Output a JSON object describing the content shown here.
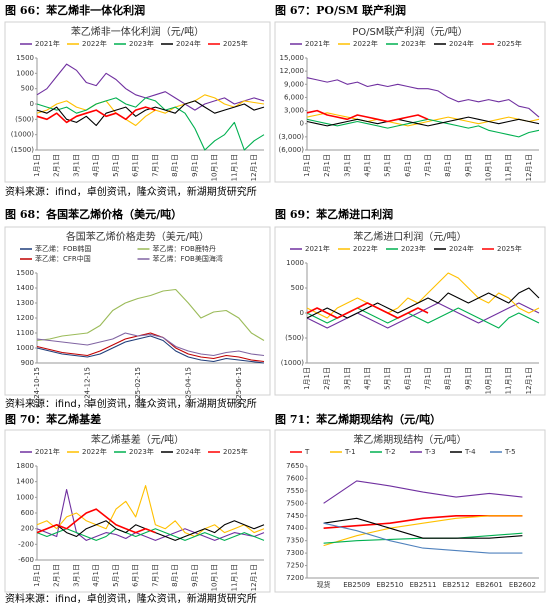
{
  "headings": [
    "图 66：苯乙烯非一体化利润",
    "图 67：PO/SM 联产利润",
    "图 68：各国苯乙烯价格（美元/吨）",
    "图 69：苯乙烯进口利润",
    "图 70：苯乙烯基差",
    "图 71：苯乙烯期现结构（元/吨）"
  ],
  "sources": [
    "资料来源：ifind，卓创资讯，隆众资讯，新湖期货研究所",
    "资料来源：ifind，卓创资讯，隆众资讯，新湖期货研究所",
    "资料来源：ifind，卓创资讯，隆众资讯，新湖期货研究所"
  ],
  "chart_data": [
    {
      "type": "line",
      "title": "苯乙烯非一体化利润（元/吨）",
      "categories": [
        "1月1日",
        null,
        "2月1日",
        null,
        "3月1日",
        null,
        "4月1日",
        null,
        "5月1日",
        null,
        "6月1日",
        null,
        "7月1日",
        null,
        "8月1日",
        null,
        "9月1日",
        null,
        "10月1日",
        null,
        "11月1日",
        null,
        "12月1日",
        null
      ],
      "ylim": [
        -1500,
        1500
      ],
      "yticks": [
        1500,
        1000,
        500,
        0,
        {
          "value": -500,
          "label": "(500)"
        },
        {
          "value": -1000,
          "label": "(1000)"
        },
        {
          "value": -1500,
          "label": "(1500)"
        }
      ],
      "series": [
        {
          "name": "2021年",
          "color": "#7030a0",
          "values": [
            300,
            500,
            900,
            1300,
            1100,
            700,
            600,
            1000,
            800,
            500,
            300,
            200,
            300,
            400,
            200,
            0,
            -200,
            0,
            100,
            200,
            0,
            100,
            200,
            100
          ]
        },
        {
          "name": "2022年",
          "color": "#ffc000",
          "values": [
            -300,
            -200,
            0,
            100,
            -100,
            -200,
            0,
            100,
            -300,
            -500,
            -700,
            -400,
            -200,
            -300,
            -100,
            0,
            100,
            300,
            200,
            0,
            -100,
            100,
            50,
            0
          ]
        },
        {
          "name": "2023年",
          "color": "#00b050",
          "values": [
            0,
            -100,
            -200,
            -100,
            -300,
            -200,
            0,
            100,
            200,
            0,
            -100,
            200,
            100,
            -200,
            -100,
            -300,
            -800,
            -1500,
            -1200,
            -1000,
            -600,
            -1500,
            -1200,
            -1000
          ]
        },
        {
          "name": "2024年",
          "color": "#000000",
          "values": [
            -200,
            -300,
            -100,
            -500,
            -600,
            -400,
            -700,
            -300,
            -200,
            -100,
            -400,
            -200,
            -100,
            -200,
            -300,
            0,
            100,
            -100,
            -300,
            -200,
            -100,
            0,
            -200,
            -100
          ]
        },
        {
          "name": "2025年",
          "color": "#ff0000",
          "values": [
            -400,
            -500,
            -300,
            -600,
            -400,
            -300,
            -200,
            -400,
            -300,
            -500,
            -200,
            -100,
            -200,
            null,
            null,
            null,
            null,
            null,
            null,
            null,
            null,
            null,
            null,
            null
          ]
        }
      ]
    },
    {
      "type": "line",
      "title": "PO/SM联产利润（元/吨）",
      "categories": [
        "1月1日",
        null,
        "2月1日",
        null,
        "3月1日",
        null,
        "4月1日",
        null,
        "5月1日",
        null,
        "6月1日",
        null,
        "7月1日",
        null,
        "8月1日",
        null,
        "9月1日",
        null,
        "10月1日",
        null,
        "11月1日",
        null,
        "12月1日",
        null
      ],
      "ylim": [
        -6000,
        15000
      ],
      "yticks": [
        {
          "value": 15000,
          "label": "15,000"
        },
        {
          "value": 12000,
          "label": "12,000"
        },
        {
          "value": 9000,
          "label": "9,000"
        },
        {
          "value": 6000,
          "label": "6,000"
        },
        {
          "value": 3000,
          "label": "3,000"
        },
        0,
        {
          "value": -3000,
          "label": "(3,000)"
        },
        {
          "value": -6000,
          "label": "(6,000)"
        }
      ],
      "series": [
        {
          "name": "2021年",
          "color": "#7030a0",
          "values": [
            10500,
            10000,
            9500,
            10000,
            9000,
            9500,
            8500,
            9000,
            8500,
            9000,
            8500,
            8000,
            8000,
            7500,
            6000,
            5000,
            5500,
            5000,
            5500,
            5000,
            5500,
            4000,
            3500,
            1500
          ]
        },
        {
          "name": "2022年",
          "color": "#ffc000",
          "values": [
            1500,
            2000,
            2500,
            2000,
            1500,
            1000,
            500,
            1000,
            500,
            0,
            -500,
            0,
            500,
            1000,
            1500,
            1000,
            500,
            0,
            500,
            1000,
            1500,
            1000,
            500,
            1000
          ]
        },
        {
          "name": "2023年",
          "color": "#00b050",
          "values": [
            1000,
            500,
            0,
            -500,
            0,
            500,
            0,
            -500,
            -1000,
            -500,
            0,
            500,
            1000,
            500,
            0,
            -500,
            -1000,
            -500,
            -1500,
            -2000,
            -2500,
            -3000,
            -2000,
            -1500
          ]
        },
        {
          "name": "2024年",
          "color": "#000000",
          "values": [
            500,
            0,
            -500,
            0,
            500,
            1000,
            500,
            0,
            500,
            1000,
            500,
            0,
            -500,
            0,
            500,
            1000,
            1500,
            1000,
            500,
            0,
            500,
            1000,
            500,
            0
          ]
        },
        {
          "name": "2025年",
          "color": "#ff0000",
          "values": [
            2500,
            3000,
            2000,
            1500,
            1000,
            2000,
            1500,
            1000,
            500,
            1000,
            1500,
            2000,
            1000,
            null,
            null,
            null,
            null,
            null,
            null,
            null,
            null,
            null,
            null,
            null
          ]
        }
      ]
    },
    {
      "type": "line",
      "title": "各国苯乙烯价格走势（美元/吨）",
      "categories": [
        "2024-10-15",
        null,
        null,
        null,
        "2024-12-15",
        null,
        null,
        null,
        "2025-02-15",
        null,
        null,
        null,
        "2025-04-15",
        null,
        null,
        null,
        "2025-06-15",
        null,
        null
      ],
      "ylim": [
        900,
        1500
      ],
      "yticks": [
        1500,
        1400,
        1300,
        1200,
        1100,
        1000,
        900
      ],
      "series": [
        {
          "name": "苯乙烯：FOB韩国",
          "color": "#1f3d7a",
          "values": [
            1000,
            980,
            960,
            950,
            940,
            960,
            1000,
            1040,
            1060,
            1080,
            1050,
            980,
            940,
            920,
            910,
            930,
            920,
            910,
            900
          ]
        },
        {
          "name": "苯乙烯：FOB鹿特丹",
          "color": "#9bbb59",
          "values": [
            1050,
            1060,
            1080,
            1090,
            1100,
            1150,
            1250,
            1300,
            1330,
            1350,
            1380,
            1390,
            1300,
            1200,
            1240,
            1250,
            1200,
            1100,
            1050
          ]
        },
        {
          "name": "苯乙烯：CFR中国",
          "color": "#c00000",
          "values": [
            1010,
            990,
            970,
            960,
            950,
            980,
            1020,
            1060,
            1080,
            1100,
            1070,
            1000,
            960,
            940,
            930,
            950,
            940,
            920,
            910
          ]
        },
        {
          "name": "苯乙烯：FOB美国海湾",
          "color": "#8064a2",
          "values": [
            1060,
            1050,
            1040,
            1030,
            1020,
            1040,
            1060,
            1100,
            1080,
            1090,
            1070,
            1010,
            980,
            960,
            950,
            970,
            980,
            960,
            950
          ]
        }
      ]
    },
    {
      "type": "line",
      "title": "苯乙烯进口利润（元/吨）",
      "categories": [
        "1月1日",
        null,
        "2月1日",
        null,
        "3月1日",
        null,
        "4月1日",
        null,
        "5月1日",
        null,
        "6月1日",
        null,
        "7月1日",
        null,
        "8月1日",
        null,
        "9月1日",
        null,
        "10月1日",
        null,
        "11月1日",
        null,
        "12月1日",
        null
      ],
      "ylim": [
        -1000,
        1000
      ],
      "yticks": [
        1000,
        500,
        0,
        {
          "value": -500,
          "label": "(500)"
        },
        {
          "value": -1000,
          "label": "(1000)"
        }
      ],
      "series": [
        {
          "name": "2021年",
          "color": "#7030a0",
          "values": [
            -100,
            -200,
            -300,
            -200,
            -100,
            0,
            -100,
            -200,
            -300,
            -200,
            -100,
            0,
            100,
            200,
            100,
            0,
            -100,
            -200,
            -100,
            0,
            100,
            200,
            100,
            0
          ]
        },
        {
          "name": "2022年",
          "color": "#ffc000",
          "values": [
            100,
            0,
            -100,
            100,
            200,
            300,
            200,
            100,
            0,
            100,
            300,
            200,
            400,
            600,
            800,
            700,
            500,
            300,
            200,
            400,
            300,
            100,
            0,
            100
          ]
        },
        {
          "name": "2023年",
          "color": "#00b050",
          "values": [
            0,
            -100,
            -200,
            -100,
            0,
            100,
            0,
            -100,
            -200,
            -100,
            0,
            -100,
            -200,
            -100,
            0,
            100,
            0,
            -100,
            -200,
            -300,
            -100,
            0,
            -100,
            -200
          ]
        },
        {
          "name": "2024年",
          "color": "#000000",
          "values": [
            -100,
            0,
            100,
            0,
            -100,
            0,
            100,
            200,
            100,
            0,
            100,
            200,
            300,
            200,
            400,
            300,
            200,
            300,
            400,
            300,
            200,
            400,
            500,
            300
          ]
        },
        {
          "name": "2025年",
          "color": "#ff0000",
          "values": [
            0,
            100,
            0,
            -100,
            0,
            100,
            200,
            100,
            0,
            -100,
            0,
            100,
            0,
            null,
            null,
            null,
            null,
            null,
            null,
            null,
            null,
            null,
            null,
            null
          ]
        }
      ]
    },
    {
      "type": "line",
      "title": "苯乙烯基差（元/吨）",
      "categories": [
        "1月1日",
        null,
        "2月1日",
        null,
        "3月1日",
        null,
        "4月1日",
        null,
        "5月1日",
        null,
        "6月1日",
        null,
        "7月1日",
        null,
        "8月1日",
        null,
        "9月1日",
        null,
        "10月1日",
        null,
        "11月1日",
        null,
        "12月1日",
        null
      ],
      "ylim": [
        -600,
        1800
      ],
      "yticks": [
        1800,
        1400,
        1000,
        600,
        200,
        -200,
        -600
      ],
      "series": [
        {
          "name": "2021年",
          "color": "#7030a0",
          "values": [
            200,
            100,
            0,
            1200,
            100,
            -100,
            0,
            100,
            50,
            -50,
            100,
            0,
            -100,
            0,
            100,
            200,
            100,
            0,
            -100,
            0,
            100,
            50,
            0,
            100
          ]
        },
        {
          "name": "2022年",
          "color": "#ffc000",
          "values": [
            300,
            400,
            200,
            500,
            600,
            400,
            300,
            200,
            700,
            900,
            500,
            1300,
            300,
            200,
            400,
            100,
            0,
            200,
            300,
            100,
            200,
            300,
            100,
            200
          ]
        },
        {
          "name": "2023年",
          "color": "#00b050",
          "values": [
            100,
            0,
            100,
            200,
            100,
            0,
            -100,
            0,
            200,
            100,
            0,
            100,
            200,
            100,
            0,
            -100,
            0,
            100,
            0,
            -100,
            0,
            100,
            0,
            -100
          ]
        },
        {
          "name": "2024年",
          "color": "#000000",
          "values": [
            100,
            200,
            300,
            100,
            0,
            200,
            300,
            400,
            200,
            100,
            300,
            200,
            100,
            0,
            -100,
            0,
            100,
            200,
            100,
            300,
            400,
            300,
            200,
            300
          ]
        },
        {
          "name": "2025年",
          "color": "#ff0000",
          "values": [
            100,
            200,
            300,
            200,
            400,
            600,
            700,
            500,
            300,
            200,
            100,
            200,
            100,
            null,
            null,
            null,
            null,
            null,
            null,
            null,
            null,
            null,
            null,
            null
          ]
        }
      ]
    },
    {
      "type": "line",
      "title": "苯乙烯期现结构（元/吨）",
      "categories": [
        "现货",
        "EB2509",
        "EB2510",
        "EB2511",
        "EB2512",
        "EB2601",
        "EB2602"
      ],
      "ylim": [
        7200,
        7650
      ],
      "yticks": [
        7650,
        7600,
        7550,
        7500,
        7450,
        7400,
        7350,
        7300,
        7250,
        7200
      ],
      "series": [
        {
          "name": "T",
          "color": "#ff0000",
          "values": [
            7400,
            7410,
            7420,
            7440,
            7450,
            7450,
            7450
          ]
        },
        {
          "name": "T-1",
          "color": "#ffc000",
          "values": [
            7330,
            7370,
            7400,
            7420,
            7440,
            7450,
            7450
          ]
        },
        {
          "name": "T-2",
          "color": "#00b050",
          "values": [
            7340,
            7350,
            7355,
            7360,
            7360,
            7370,
            7380
          ]
        },
        {
          "name": "T-3",
          "color": "#7030a0",
          "values": [
            7500,
            7590,
            7570,
            7545,
            7525,
            7540,
            7525
          ]
        },
        {
          "name": "T-4",
          "color": "#000000",
          "values": [
            7420,
            7440,
            7400,
            7360,
            7360,
            7360,
            7370
          ]
        },
        {
          "name": "T-5",
          "color": "#4f81bd",
          "values": [
            7420,
            7390,
            7350,
            7320,
            7310,
            7300,
            7300
          ]
        }
      ]
    }
  ]
}
